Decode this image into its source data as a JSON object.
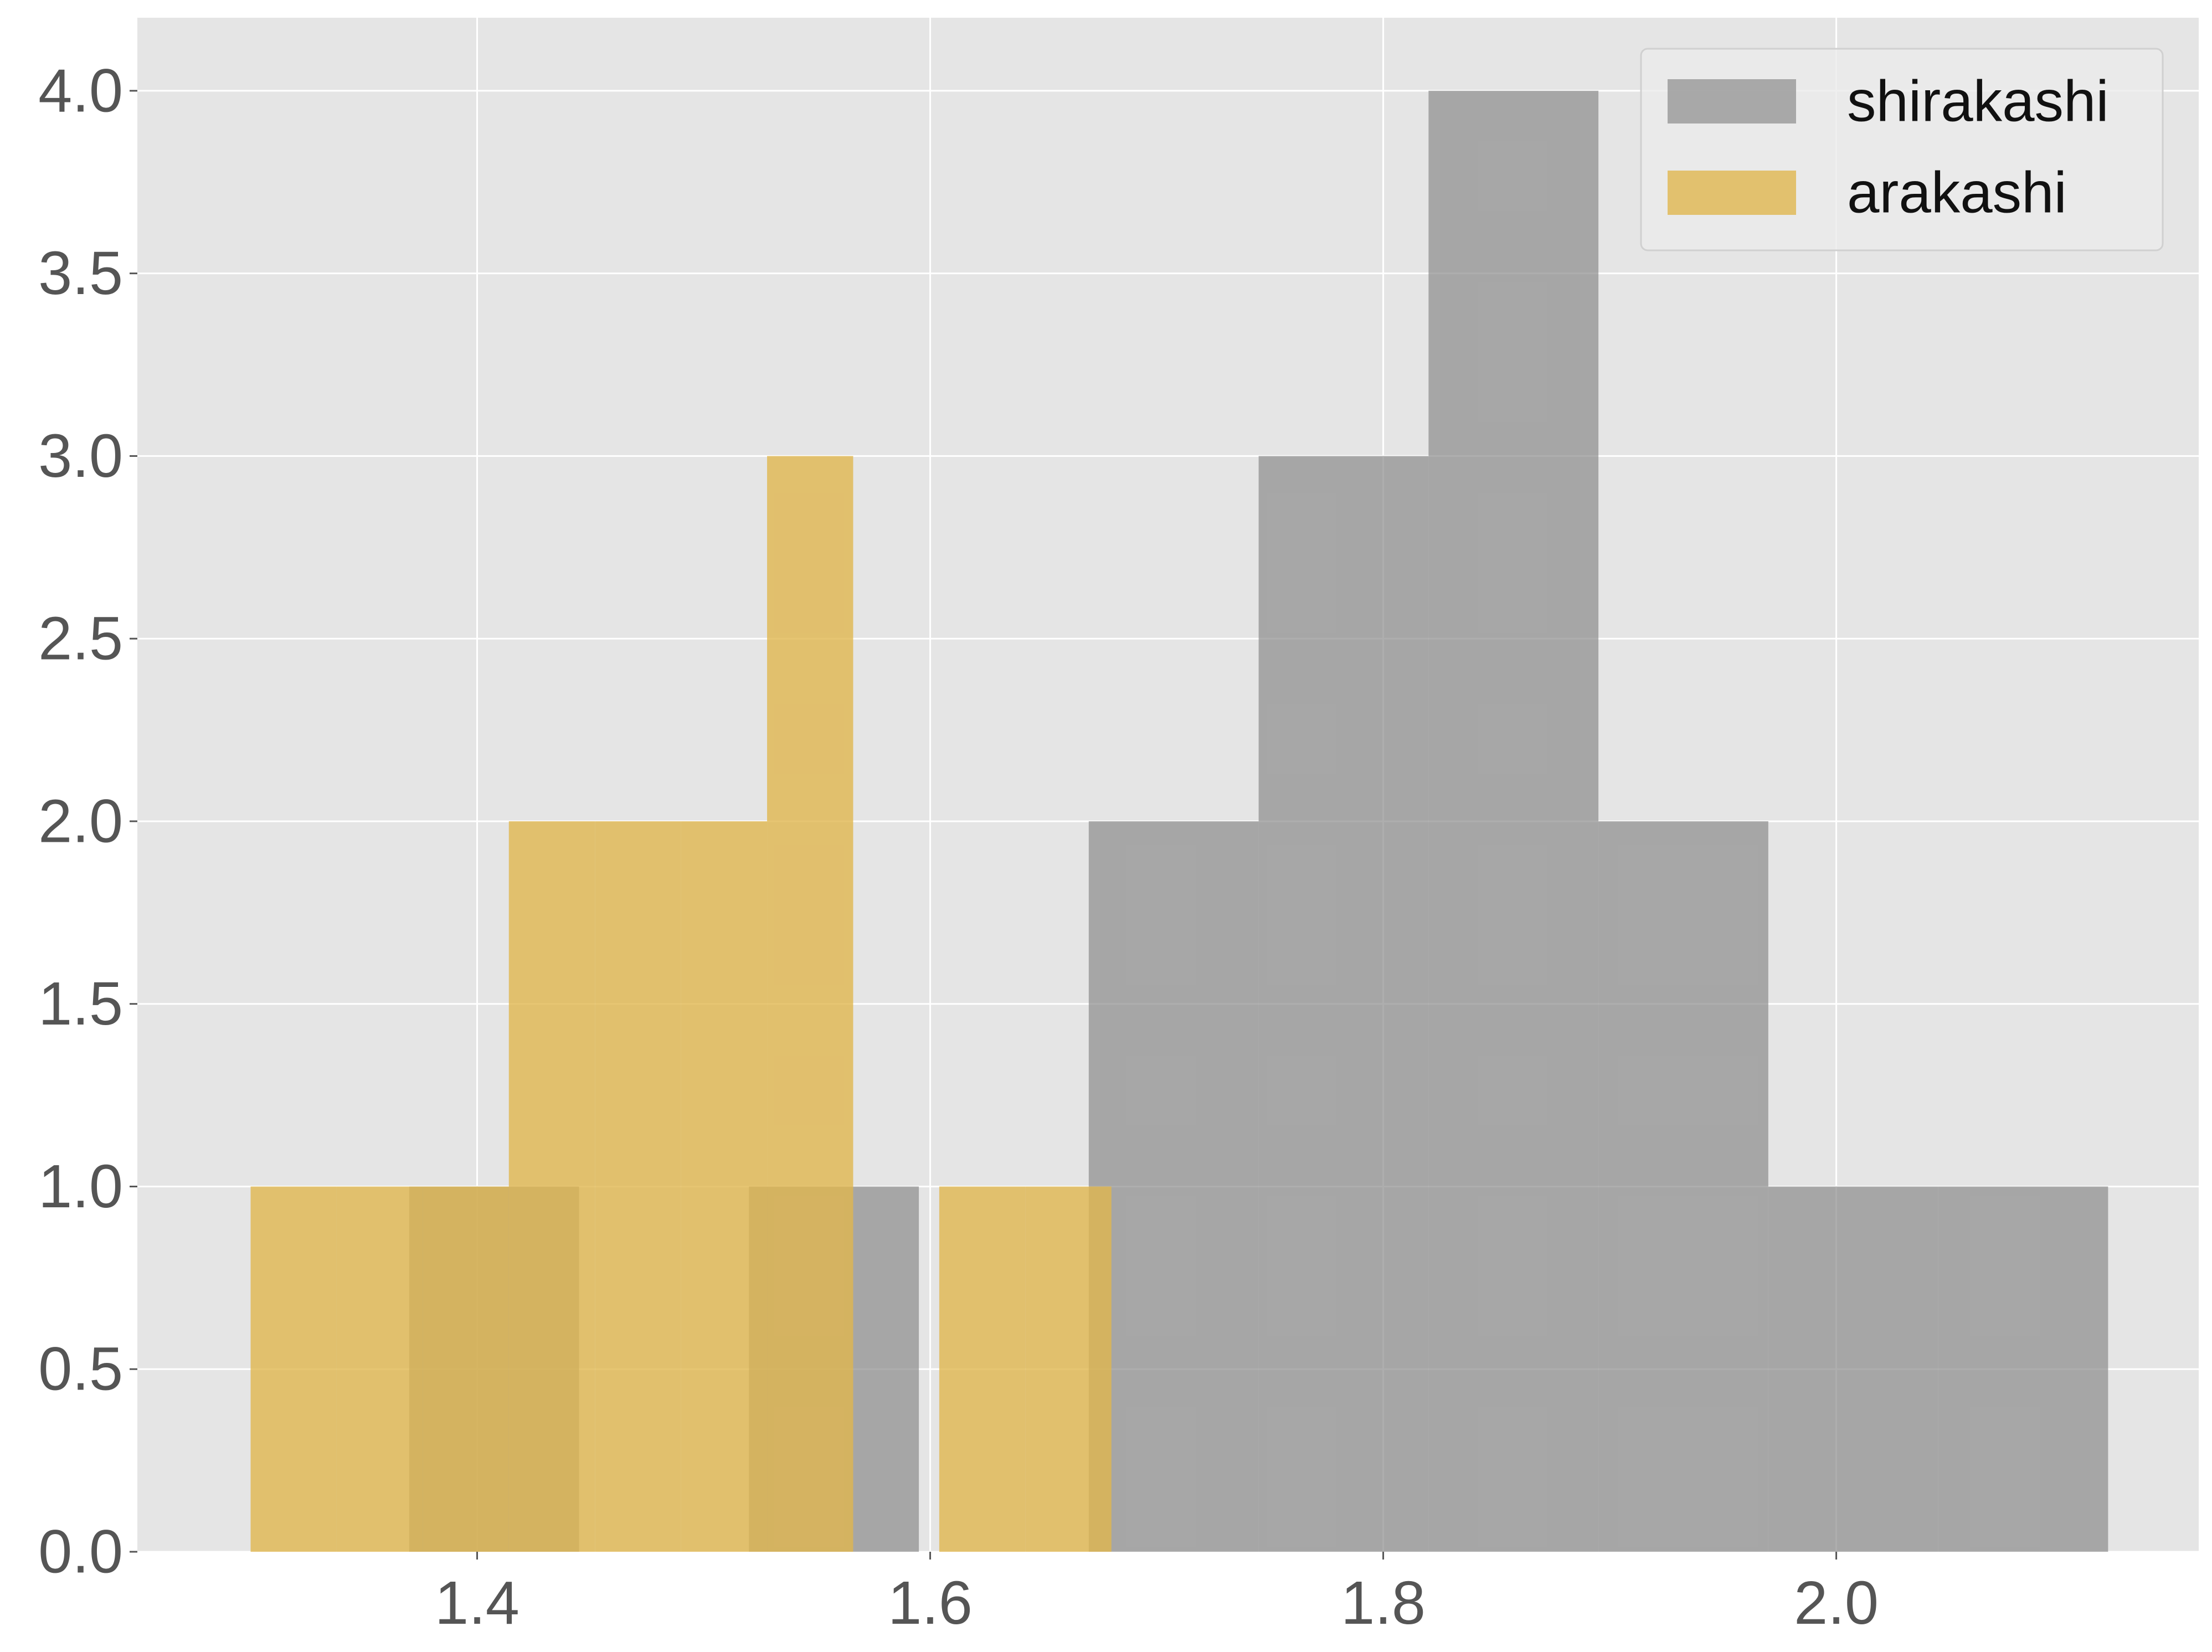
{
  "chart_data": {
    "type": "bar",
    "subtype": "histogram",
    "title": "",
    "xlabel": "",
    "ylabel": "",
    "xlim": [
      1.25,
      2.16
    ],
    "ylim": [
      0,
      4.2
    ],
    "xticks": [
      1.4,
      1.6,
      1.8,
      2.0
    ],
    "xtick_labels": [
      "1.4",
      "1.6",
      "1.8",
      "2.0"
    ],
    "yticks": [
      0,
      0.5,
      1.0,
      1.5,
      2.0,
      2.5,
      3.0,
      3.5,
      4.0
    ],
    "ytick_labels": [
      "0.0",
      "0.5",
      "1.0",
      "1.5",
      "2.0",
      "2.5",
      "3.0",
      "3.5",
      "4.0"
    ],
    "grid": true,
    "legend_position": "top-right",
    "series": [
      {
        "name": "shirakashi",
        "color": "#8c8c8c",
        "opacity": 0.7,
        "bins": [
          {
            "x0": 1.37,
            "x1": 1.445,
            "count": 1
          },
          {
            "x0": 1.445,
            "x1": 1.52,
            "count": 0
          },
          {
            "x0": 1.52,
            "x1": 1.595,
            "count": 1
          },
          {
            "x0": 1.595,
            "x1": 1.67,
            "count": 0
          },
          {
            "x0": 1.67,
            "x1": 1.745,
            "count": 2
          },
          {
            "x0": 1.745,
            "x1": 1.82,
            "count": 3
          },
          {
            "x0": 1.82,
            "x1": 1.895,
            "count": 4
          },
          {
            "x0": 1.895,
            "x1": 1.97,
            "count": 2
          },
          {
            "x0": 1.97,
            "x1": 2.045,
            "count": 1
          },
          {
            "x0": 2.045,
            "x1": 2.12,
            "count": 1
          }
        ]
      },
      {
        "name": "arakashi",
        "color": "#e0b64f",
        "opacity": 0.8,
        "bins": [
          {
            "x0": 1.3,
            "x1": 1.338,
            "count": 1
          },
          {
            "x0": 1.338,
            "x1": 1.376,
            "count": 1
          },
          {
            "x0": 1.376,
            "x1": 1.414,
            "count": 1
          },
          {
            "x0": 1.414,
            "x1": 1.452,
            "count": 2
          },
          {
            "x0": 1.452,
            "x1": 1.49,
            "count": 2
          },
          {
            "x0": 1.49,
            "x1": 1.528,
            "count": 2
          },
          {
            "x0": 1.528,
            "x1": 1.566,
            "count": 3
          },
          {
            "x0": 1.566,
            "x1": 1.604,
            "count": 0
          },
          {
            "x0": 1.604,
            "x1": 1.642,
            "count": 1
          },
          {
            "x0": 1.642,
            "x1": 1.68,
            "count": 1
          }
        ]
      }
    ]
  }
}
